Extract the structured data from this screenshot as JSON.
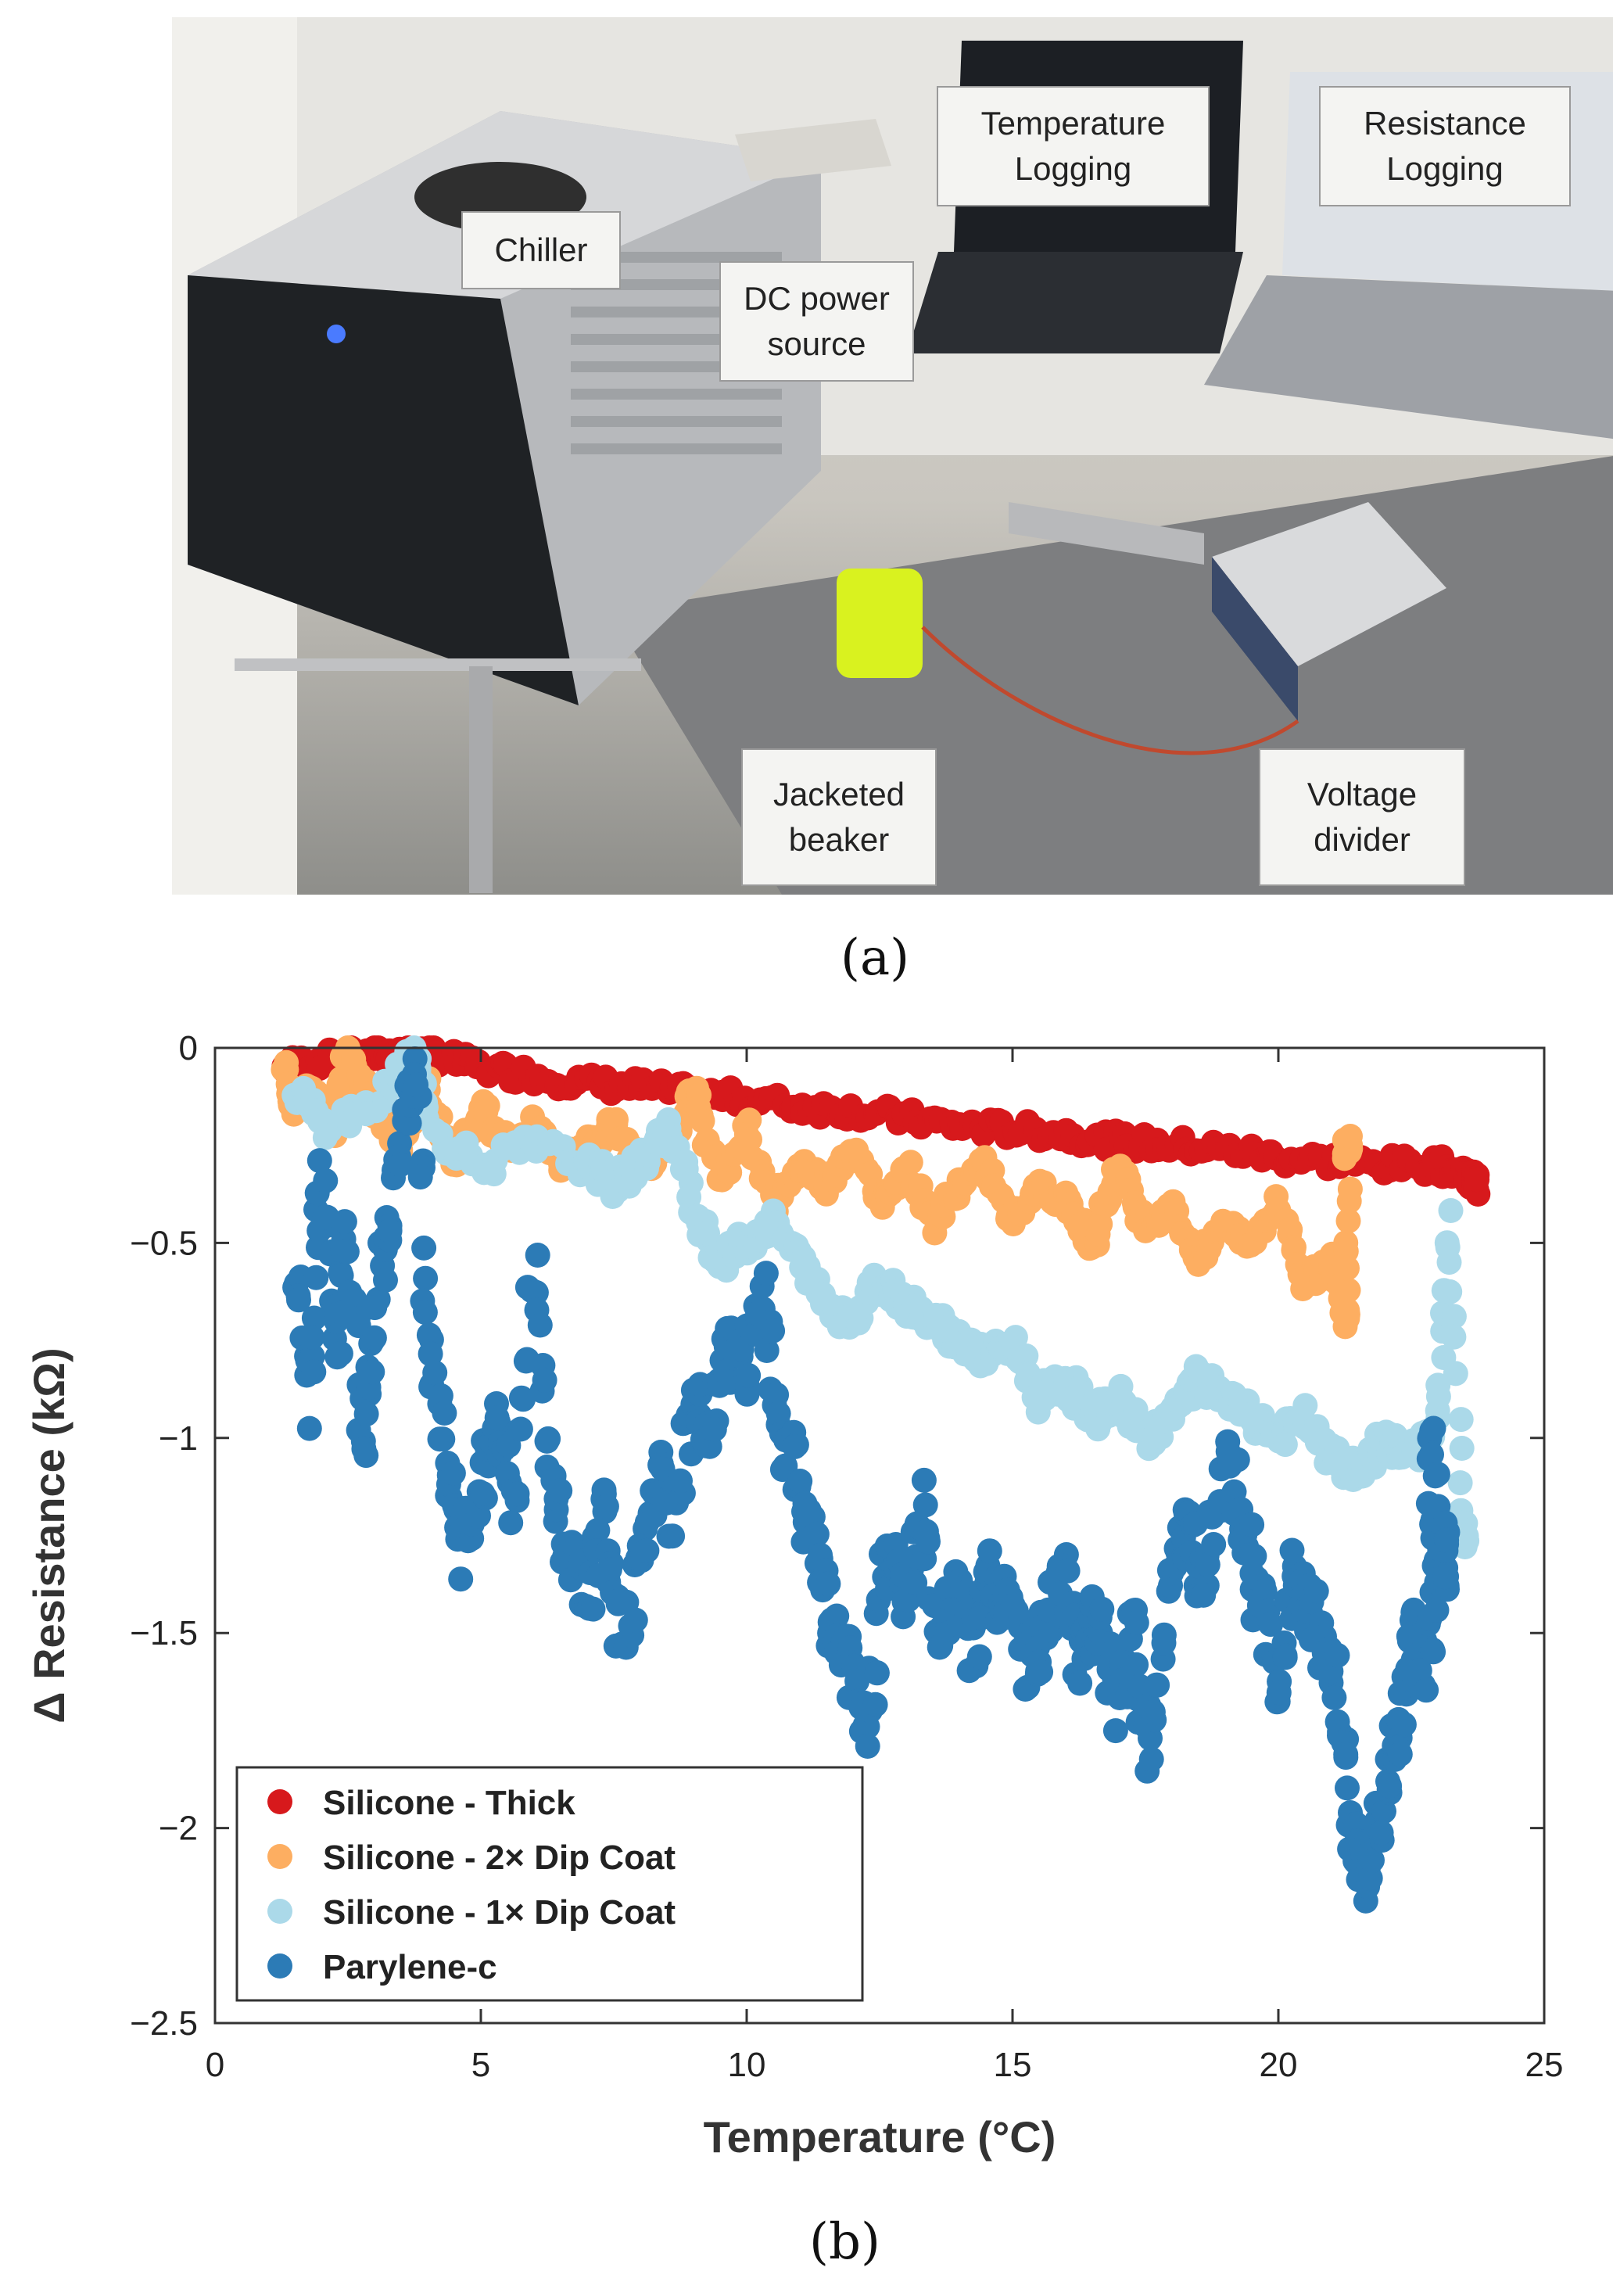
{
  "photo": {
    "labels": {
      "chiller": "Chiller",
      "dc_power": "DC power\nsource",
      "temperature_logging": "Temperature\nLogging",
      "resistance_logging": "Resistance\nLogging",
      "jacketed_beaker": "Jacketed\nbeaker",
      "voltage_divider": "Voltage\ndivider"
    },
    "caption": "(a)"
  },
  "chart_caption": "(b)",
  "colors": {
    "silicone_thick": "#d7191c",
    "silicone_2x": "#fdae61",
    "silicone_1x": "#abd9e9",
    "parylene": "#2c7bb6"
  },
  "chart_data": {
    "type": "scatter",
    "title": "",
    "xlabel": "Temperature (°C)",
    "ylabel": "Δ Resistance (kΩ)",
    "xlim": [
      0,
      25
    ],
    "ylim": [
      -2.5,
      0
    ],
    "xticks": [
      0,
      5,
      10,
      15,
      20,
      25
    ],
    "xtick_labels": [
      "0",
      "5",
      "10",
      "15",
      "20",
      "25"
    ],
    "yticks": [
      0,
      -0.5,
      -1,
      -1.5,
      -2,
      -2.5
    ],
    "ytick_labels": [
      "0",
      "-0.5",
      "-1",
      "-1.5",
      "-2",
      "-2.5"
    ],
    "legend_position": "bottom-left",
    "series": [
      {
        "name": "Silicone - Thick",
        "color_key": "silicone_thick",
        "points": [
          [
            1.3,
            -0.05
          ],
          [
            2,
            -0.03
          ],
          [
            3,
            -0.02
          ],
          [
            3.5,
            -0.01
          ],
          [
            4.2,
            -0.02
          ],
          [
            5,
            -0.05
          ],
          [
            6,
            -0.07
          ],
          [
            7,
            -0.09
          ],
          [
            8,
            -0.1
          ],
          [
            9,
            -0.12
          ],
          [
            10,
            -0.13
          ],
          [
            11,
            -0.15
          ],
          [
            12,
            -0.16
          ],
          [
            13,
            -0.18
          ],
          [
            14,
            -0.2
          ],
          [
            15,
            -0.21
          ],
          [
            16,
            -0.22
          ],
          [
            17,
            -0.24
          ],
          [
            18,
            -0.25
          ],
          [
            19,
            -0.26
          ],
          [
            20,
            -0.28
          ],
          [
            21,
            -0.29
          ],
          [
            22,
            -0.3
          ],
          [
            23,
            -0.3
          ],
          [
            23.5,
            -0.32
          ],
          [
            23.7,
            -0.35
          ]
        ]
      },
      {
        "name": "Silicone - 2× Dip Coat",
        "color_key": "silicone_2x",
        "points": [
          [
            1.3,
            -0.05
          ],
          [
            1.5,
            -0.15
          ],
          [
            1.8,
            -0.1
          ],
          [
            2.2,
            -0.2
          ],
          [
            2.5,
            0
          ],
          [
            3,
            -0.15
          ],
          [
            3.5,
            -0.25
          ],
          [
            4,
            -0.1
          ],
          [
            4.5,
            -0.3
          ],
          [
            5,
            -0.15
          ],
          [
            5.5,
            -0.25
          ],
          [
            6,
            -0.2
          ],
          [
            6.5,
            -0.3
          ],
          [
            7,
            -0.25
          ],
          [
            7.5,
            -0.2
          ],
          [
            8,
            -0.3
          ],
          [
            8.5,
            -0.25
          ],
          [
            9,
            -0.1
          ],
          [
            9.5,
            -0.35
          ],
          [
            10,
            -0.2
          ],
          [
            10.5,
            -0.4
          ],
          [
            11,
            -0.3
          ],
          [
            11.5,
            -0.35
          ],
          [
            12,
            -0.25
          ],
          [
            12.5,
            -0.4
          ],
          [
            13,
            -0.3
          ],
          [
            13.5,
            -0.45
          ],
          [
            14,
            -0.35
          ],
          [
            14.5,
            -0.3
          ],
          [
            15,
            -0.45
          ],
          [
            15.5,
            -0.35
          ],
          [
            16,
            -0.4
          ],
          [
            16.5,
            -0.5
          ],
          [
            17,
            -0.3
          ],
          [
            17.5,
            -0.45
          ],
          [
            18,
            -0.4
          ],
          [
            18.5,
            -0.55
          ],
          [
            19,
            -0.45
          ],
          [
            19.5,
            -0.5
          ],
          [
            20,
            -0.4
          ],
          [
            20.5,
            -0.6
          ],
          [
            21,
            -0.55
          ],
          [
            21.3,
            -0.7
          ],
          [
            21.3,
            -0.25
          ]
        ]
      },
      {
        "name": "Silicone - 1× Dip Coat",
        "color_key": "silicone_1x",
        "points": [
          [
            1.5,
            -0.1
          ],
          [
            2,
            -0.2
          ],
          [
            3,
            -0.15
          ],
          [
            3.8,
            0
          ],
          [
            4,
            -0.2
          ],
          [
            5,
            -0.3
          ],
          [
            6,
            -0.25
          ],
          [
            7,
            -0.3
          ],
          [
            7.5,
            -0.35
          ],
          [
            8,
            -0.3
          ],
          [
            8.5,
            -0.2
          ],
          [
            9,
            -0.4
          ],
          [
            9.5,
            -0.55
          ],
          [
            10,
            -0.5
          ],
          [
            10.5,
            -0.45
          ],
          [
            11,
            -0.55
          ],
          [
            11.5,
            -0.65
          ],
          [
            12,
            -0.7
          ],
          [
            12.5,
            -0.6
          ],
          [
            13,
            -0.65
          ],
          [
            13.5,
            -0.7
          ],
          [
            14,
            -0.75
          ],
          [
            14.5,
            -0.8
          ],
          [
            15,
            -0.75
          ],
          [
            15.5,
            -0.9
          ],
          [
            16,
            -0.85
          ],
          [
            16.5,
            -0.95
          ],
          [
            17,
            -0.9
          ],
          [
            17.5,
            -1.0
          ],
          [
            18,
            -0.95
          ],
          [
            18.5,
            -0.85
          ],
          [
            19,
            -0.9
          ],
          [
            19.5,
            -0.95
          ],
          [
            20,
            -1.0
          ],
          [
            20.5,
            -0.95
          ],
          [
            21,
            -1.05
          ],
          [
            21.5,
            -1.1
          ],
          [
            22,
            -1.0
          ],
          [
            22.5,
            -1.05
          ],
          [
            23,
            -0.95
          ],
          [
            23.2,
            -0.45
          ],
          [
            23.5,
            -1.25
          ]
        ]
      },
      {
        "name": "Parylene-c",
        "color_key": "parylene",
        "points": [
          [
            1.5,
            -0.6
          ],
          [
            1.8,
            -0.9
          ],
          [
            2,
            -0.3
          ],
          [
            2.3,
            -0.8
          ],
          [
            2.5,
            -0.5
          ],
          [
            2.8,
            -1.0
          ],
          [
            3,
            -0.7
          ],
          [
            3.3,
            -0.4
          ],
          [
            3.6,
            -0.2
          ],
          [
            3.8,
            0
          ],
          [
            4,
            -0.8
          ],
          [
            4.3,
            -1.0
          ],
          [
            4.6,
            -1.3
          ],
          [
            5,
            -1.1
          ],
          [
            5.3,
            -0.9
          ],
          [
            5.6,
            -1.2
          ],
          [
            6,
            -0.55
          ],
          [
            6.3,
            -1.1
          ],
          [
            6.6,
            -1.3
          ],
          [
            7,
            -1.4
          ],
          [
            7.3,
            -1.2
          ],
          [
            7.6,
            -1.5
          ],
          [
            8,
            -1.35
          ],
          [
            8.3,
            -1.1
          ],
          [
            8.6,
            -1.2
          ],
          [
            9,
            -0.9
          ],
          [
            9.3,
            -1.0
          ],
          [
            9.6,
            -0.75
          ],
          [
            10,
            -0.85
          ],
          [
            10.3,
            -0.6
          ],
          [
            10.6,
            -0.95
          ],
          [
            11,
            -1.1
          ],
          [
            11.3,
            -1.3
          ],
          [
            11.6,
            -1.5
          ],
          [
            12,
            -1.6
          ],
          [
            12.3,
            -1.75
          ],
          [
            12.6,
            -1.3
          ],
          [
            13,
            -1.4
          ],
          [
            13.3,
            -1.15
          ],
          [
            13.6,
            -1.5
          ],
          [
            14,
            -1.4
          ],
          [
            14.3,
            -1.55
          ],
          [
            14.6,
            -1.35
          ],
          [
            15,
            -1.45
          ],
          [
            15.3,
            -1.6
          ],
          [
            15.6,
            -1.5
          ],
          [
            16,
            -1.35
          ],
          [
            16.3,
            -1.6
          ],
          [
            16.6,
            -1.45
          ],
          [
            17,
            -1.7
          ],
          [
            17.3,
            -1.5
          ],
          [
            17.6,
            -1.85
          ],
          [
            18,
            -1.3
          ],
          [
            18.3,
            -1.2
          ],
          [
            18.6,
            -1.4
          ],
          [
            19,
            -1.05
          ],
          [
            19.3,
            -1.2
          ],
          [
            19.6,
            -1.4
          ],
          [
            20,
            -1.65
          ],
          [
            20.3,
            -1.3
          ],
          [
            20.6,
            -1.45
          ],
          [
            21,
            -1.55
          ],
          [
            21.3,
            -1.9
          ],
          [
            21.5,
            -2.1
          ],
          [
            21.7,
            -2.15
          ],
          [
            22,
            -1.9
          ],
          [
            22.3,
            -1.75
          ],
          [
            22.5,
            -1.5
          ],
          [
            22.7,
            -1.6
          ],
          [
            23,
            -1.4
          ],
          [
            22.8,
            -0.98
          ],
          [
            23.2,
            -1.3
          ]
        ]
      }
    ]
  }
}
